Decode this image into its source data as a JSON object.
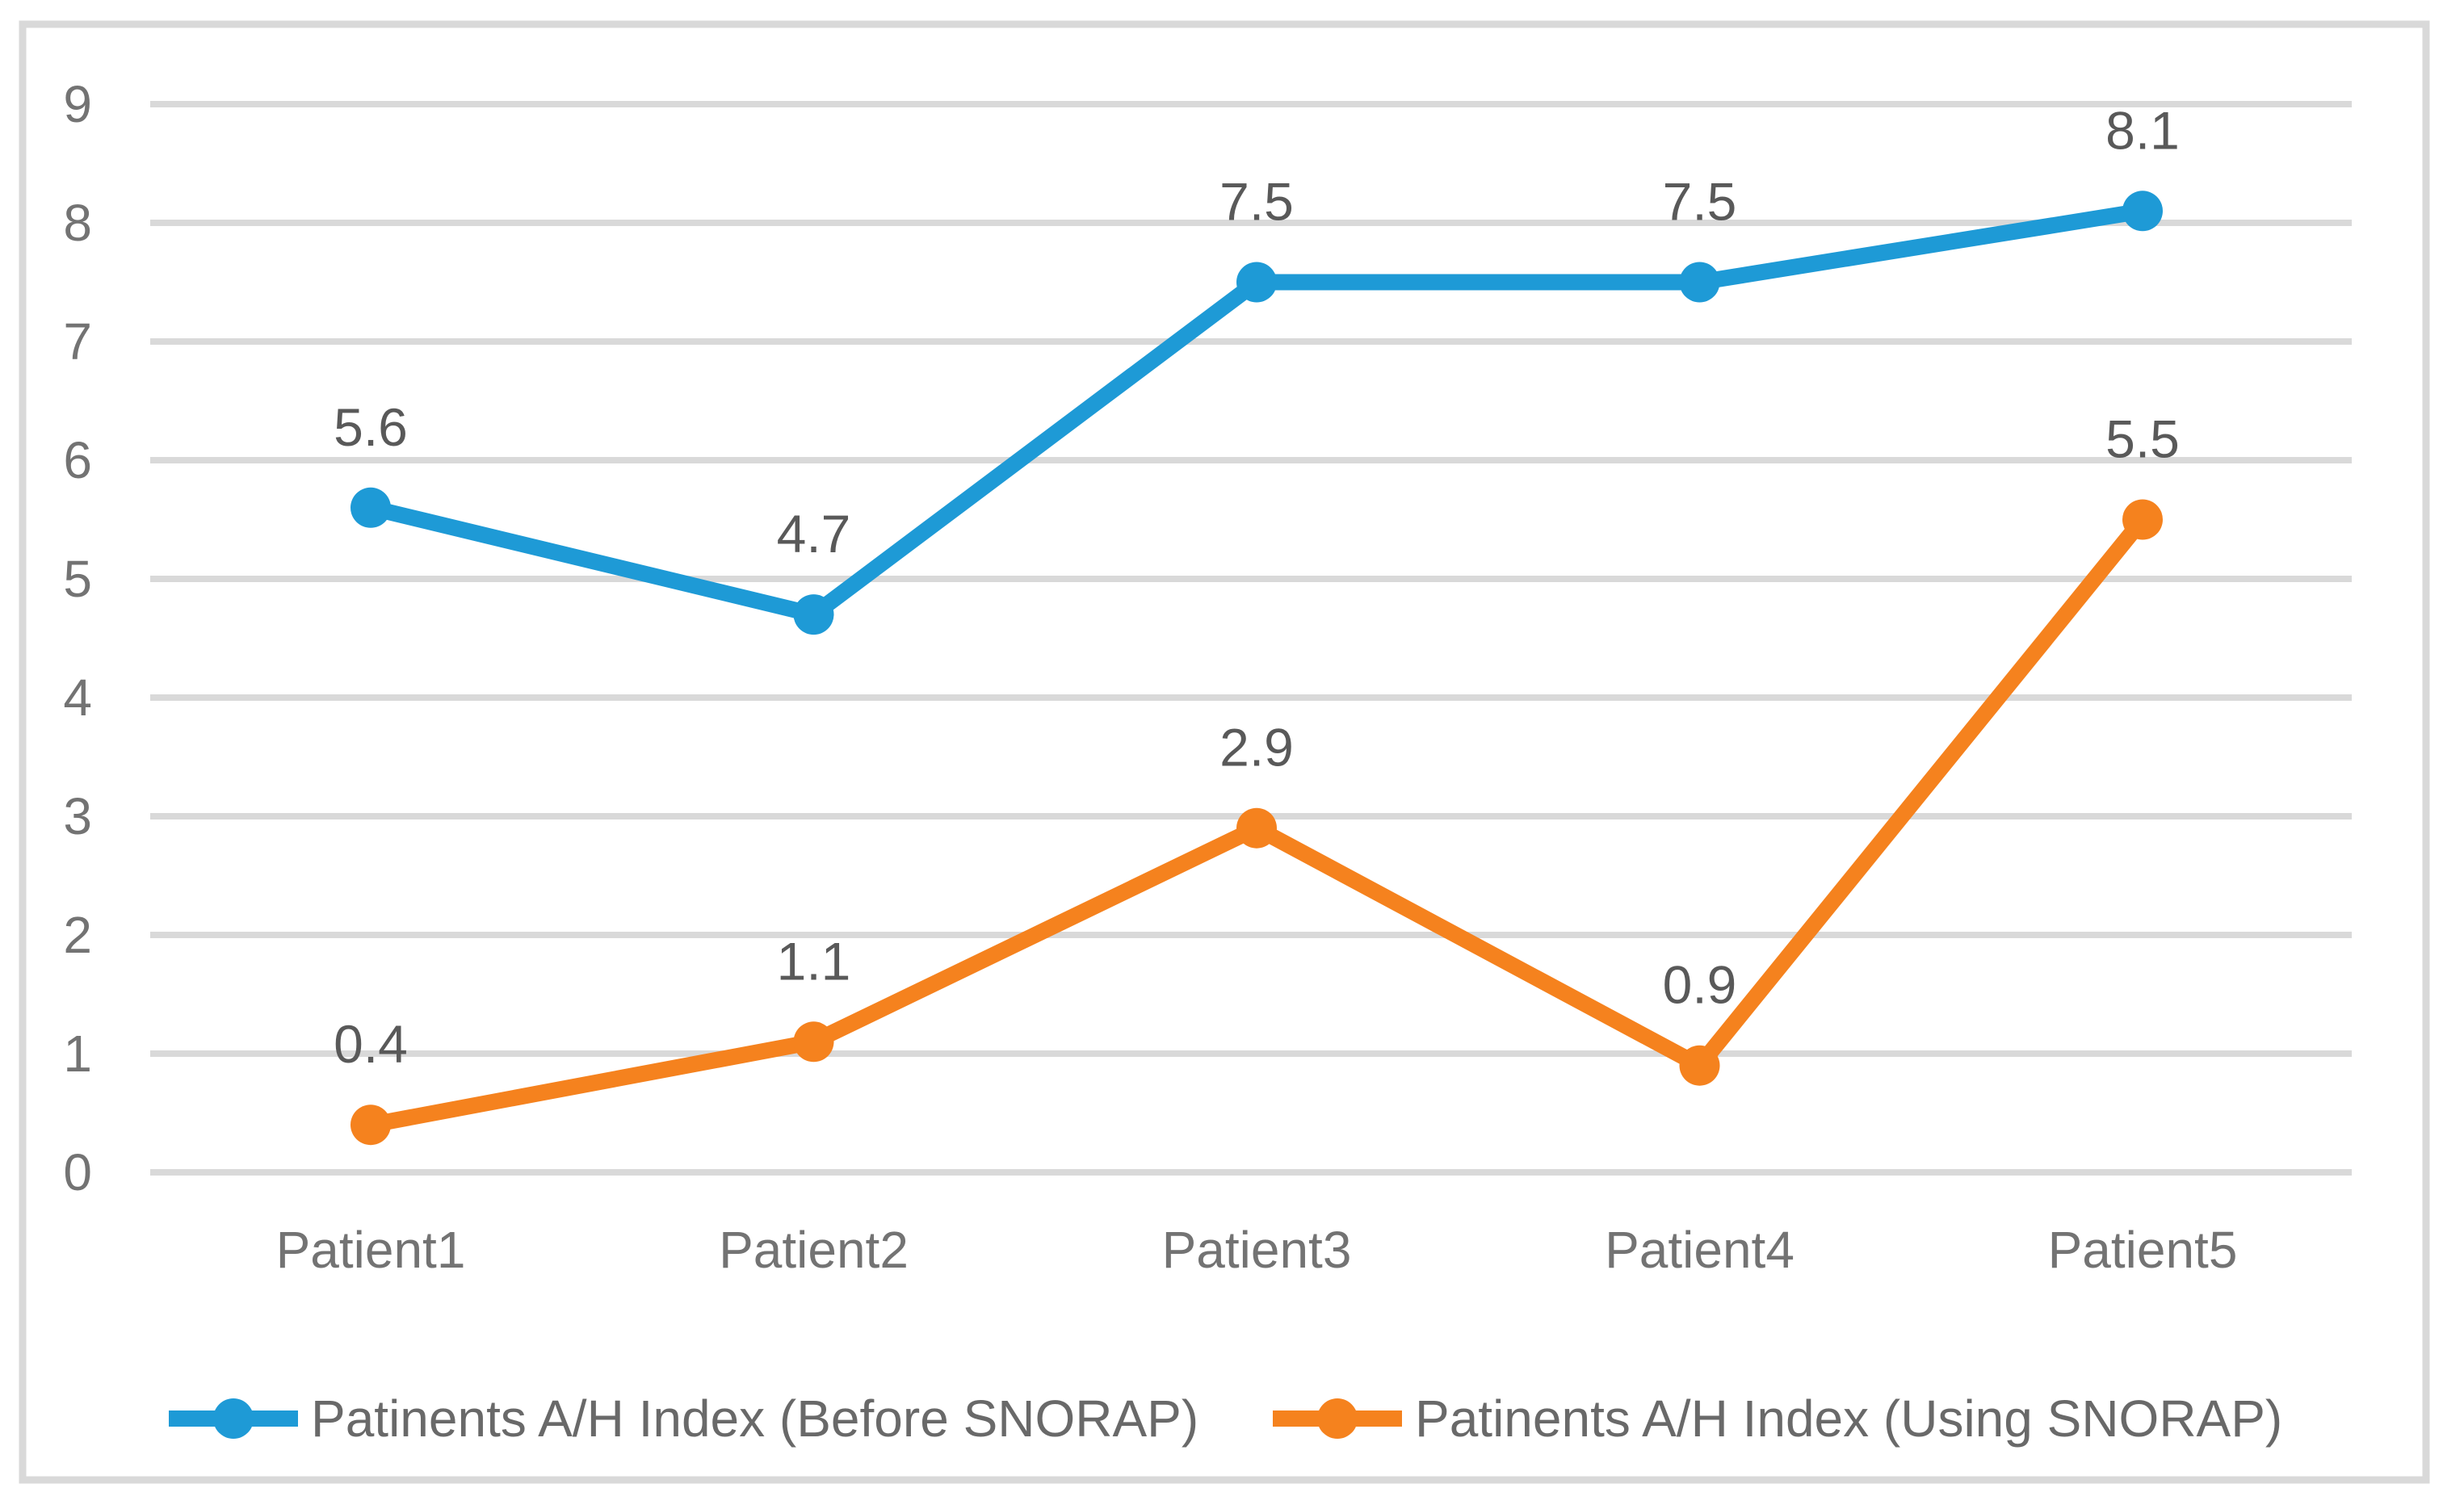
{
  "chart_data": {
    "type": "line",
    "title": "",
    "xlabel": "",
    "ylabel": "",
    "categories": [
      "Patient1",
      "Patient2",
      "Patient3",
      "Patient4",
      "Patient5"
    ],
    "series": [
      {
        "name": "Patinents A/H Index (Before SNORAP)",
        "values": [
          5.6,
          4.7,
          7.5,
          7.5,
          8.1
        ],
        "color": "#1E9AD6",
        "data_labels": [
          "5.6",
          "4.7",
          "7.5",
          "7.5",
          "8.1"
        ]
      },
      {
        "name": "Patinents A/H Index (Using SNORAP)",
        "values": [
          0.4,
          1.1,
          2.9,
          0.9,
          5.5
        ],
        "color": "#F5821E",
        "data_labels": [
          "0.4",
          "1.1",
          "2.9",
          "0.9",
          "5.5"
        ]
      }
    ],
    "ylim": [
      0,
      9
    ],
    "ytick_step": 1,
    "ytick_labels": [
      "0",
      "1",
      "2",
      "3",
      "4",
      "5",
      "6",
      "7",
      "8",
      "9"
    ],
    "grid": true,
    "marker": "circle",
    "legend_position": "bottom",
    "colors": {
      "gridline": "#D9D9D9",
      "frame": "#D9D9D9",
      "axis_text": "#737373",
      "data_label_text": "#595959",
      "legend_text": "#696969",
      "background": "#FFFFFF"
    }
  }
}
